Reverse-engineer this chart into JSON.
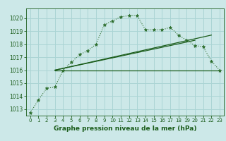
{
  "title": "Graphe pression niveau de la mer (hPa)",
  "background_color": "#cce8e8",
  "grid_color": "#aad4d4",
  "line_color_dark": "#1a5c1a",
  "line_color_mid": "#2d6e2d",
  "xlim": [
    -0.5,
    23.5
  ],
  "ylim": [
    1012.5,
    1020.75
  ],
  "yticks": [
    1013,
    1014,
    1015,
    1016,
    1017,
    1018,
    1019,
    1020
  ],
  "xticks": [
    0,
    1,
    2,
    3,
    4,
    5,
    6,
    7,
    8,
    9,
    10,
    11,
    12,
    13,
    14,
    15,
    16,
    17,
    18,
    19,
    20,
    21,
    22,
    23
  ],
  "series1_x": [
    0,
    1,
    2,
    3,
    4,
    5,
    6,
    7,
    8,
    9,
    10,
    11,
    12,
    13,
    14,
    15,
    16,
    17,
    18,
    19,
    20,
    21,
    22,
    23
  ],
  "series1_y": [
    1012.7,
    1013.7,
    1014.6,
    1014.7,
    1016.0,
    1016.6,
    1017.2,
    1017.5,
    1018.0,
    1019.5,
    1019.8,
    1020.1,
    1020.2,
    1020.2,
    1019.1,
    1019.1,
    1019.1,
    1019.3,
    1018.7,
    1018.3,
    1017.9,
    1017.8,
    1016.7,
    1016.0
  ],
  "series2_x": [
    3,
    23
  ],
  "series2_y": [
    1016.0,
    1016.0
  ],
  "series3_x": [
    3,
    20
  ],
  "series3_y": [
    1016.0,
    1018.3
  ],
  "series4_x": [
    3,
    22
  ],
  "series4_y": [
    1016.0,
    1018.7
  ],
  "tick_fontsize": 5.5,
  "xlabel_fontsize": 6.5,
  "marker_size": 3.5,
  "line_width": 0.8
}
